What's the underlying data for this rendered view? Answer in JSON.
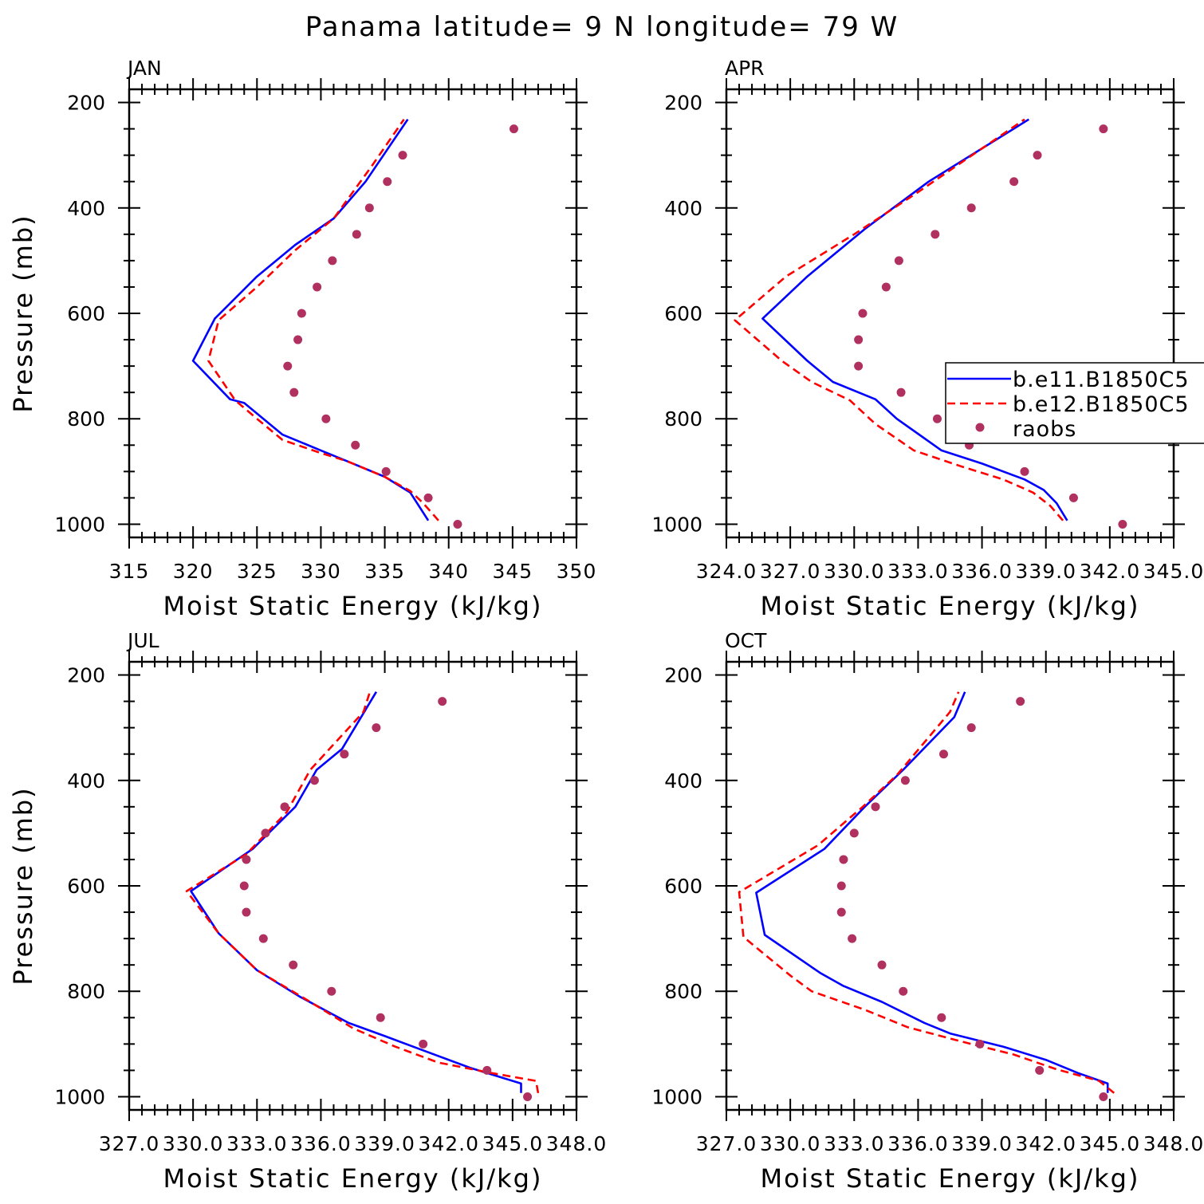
{
  "suptitle": "Panama  latitude= 9 N longitude= 79 W",
  "colors": {
    "series_1": "#0000ff",
    "series_2": "#ff0000",
    "raobs": "#b03060"
  },
  "chart_data": [
    {
      "type": "line",
      "title": "JAN",
      "xlabel": "Moist Static Energy (kJ/kg)",
      "ylabel": "Pressure (mb)",
      "xlim": [
        315,
        350
      ],
      "ylim": [
        1000,
        200
      ],
      "xticks": [
        "315",
        "320",
        "325",
        "330",
        "335",
        "340",
        "345",
        "350"
      ],
      "yticks": [
        "200",
        "400",
        "600",
        "800",
        "1000"
      ],
      "series": [
        {
          "name": "b.e11.B1850C5",
          "style": "solid",
          "points": [
            [
              338.4,
              993
            ],
            [
              337,
              940
            ],
            [
              335,
              910
            ],
            [
              332,
              880
            ],
            [
              330,
              860
            ],
            [
              327,
              830
            ],
            [
              324,
              770
            ],
            [
              322.9,
              763
            ],
            [
              320,
              690
            ],
            [
              321.7,
              610
            ],
            [
              325,
              530
            ],
            [
              328,
              470
            ],
            [
              331,
              420
            ],
            [
              333.5,
              350
            ],
            [
              336.8,
              232
            ]
          ]
        },
        {
          "name": "b.e12.B1850C5",
          "style": "dashed",
          "points": [
            [
              339.2,
              993
            ],
            [
              338,
              960
            ],
            [
              337,
              937
            ],
            [
              335,
              910
            ],
            [
              332,
              880
            ],
            [
              330,
              865
            ],
            [
              327,
              840
            ],
            [
              325,
              800
            ],
            [
              323.3,
              765
            ],
            [
              321.2,
              690
            ],
            [
              322,
              613
            ],
            [
              325,
              550
            ],
            [
              328,
              480
            ],
            [
              331,
              420
            ],
            [
              334,
              320
            ],
            [
              336.5,
              232
            ]
          ]
        },
        {
          "name": "raobs",
          "style": "points",
          "points": [
            [
              345.1,
              250
            ],
            [
              336.4,
              300
            ],
            [
              335.2,
              350
            ],
            [
              333.8,
              400
            ],
            [
              332.8,
              450
            ],
            [
              330.9,
              500
            ],
            [
              329.7,
              550
            ],
            [
              328.5,
              600
            ],
            [
              328.2,
              650
            ],
            [
              327.4,
              700
            ],
            [
              327.9,
              750
            ],
            [
              330.4,
              800
            ],
            [
              332.7,
              850
            ],
            [
              335.1,
              900
            ],
            [
              338.4,
              950
            ],
            [
              340.7,
              1000
            ]
          ]
        }
      ]
    },
    {
      "type": "line",
      "title": "APR",
      "xlabel": "Moist Static Energy (kJ/kg)",
      "ylabel": "",
      "xlim": [
        324.0,
        345.0
      ],
      "ylim": [
        1000,
        200
      ],
      "xticks": [
        "324.0",
        "327.0",
        "330.0",
        "333.0",
        "336.0",
        "339.0",
        "342.0",
        "345.0"
      ],
      "yticks": [
        "200",
        "400",
        "600",
        "800",
        "1000"
      ],
      "series": [
        {
          "name": "b.e11.B1850C5",
          "style": "solid",
          "points": [
            [
              340.0,
              993
            ],
            [
              339.5,
              960
            ],
            [
              338.9,
              935
            ],
            [
              338,
              915
            ],
            [
              336,
              885
            ],
            [
              334.1,
              860
            ],
            [
              332,
              800
            ],
            [
              331,
              763
            ],
            [
              329,
              730
            ],
            [
              327.8,
              690
            ],
            [
              325.7,
              610
            ],
            [
              327.8,
              530
            ],
            [
              330.5,
              440
            ],
            [
              333.5,
              350
            ],
            [
              338.2,
              232
            ]
          ]
        },
        {
          "name": "b.e12.B1850C5",
          "style": "dashed",
          "points": [
            [
              339.8,
              993
            ],
            [
              339.2,
              965
            ],
            [
              338.4,
              940
            ],
            [
              337,
              915
            ],
            [
              335,
              890
            ],
            [
              332.8,
              860
            ],
            [
              331,
              810
            ],
            [
              329.8,
              765
            ],
            [
              328,
              730
            ],
            [
              326.6,
              690
            ],
            [
              324.4,
              613
            ],
            [
              326.8,
              530
            ],
            [
              330,
              450
            ],
            [
              333,
              370
            ],
            [
              338,
              232
            ]
          ]
        },
        {
          "name": "raobs",
          "style": "points",
          "points": [
            [
              341.7,
              250
            ],
            [
              338.6,
              300
            ],
            [
              337.5,
              350
            ],
            [
              335.5,
              400
            ],
            [
              333.8,
              450
            ],
            [
              332.1,
              500
            ],
            [
              331.5,
              550
            ],
            [
              330.4,
              600
            ],
            [
              330.2,
              650
            ],
            [
              330.2,
              700
            ],
            [
              332.2,
              750
            ],
            [
              333.9,
              800
            ],
            [
              335.4,
              850
            ],
            [
              338,
              900
            ],
            [
              340.3,
              950
            ],
            [
              342.6,
              1000
            ]
          ]
        }
      ],
      "legend": {
        "placement": "right",
        "entries": [
          "b.e11.B1850C5",
          "b.e12.B1850C5",
          "raobs"
        ]
      }
    },
    {
      "type": "line",
      "title": "JUL",
      "xlabel": "Moist Static Energy (kJ/kg)",
      "ylabel": "Pressure (mb)",
      "xlim": [
        327.0,
        348.0
      ],
      "ylim": [
        1000,
        200
      ],
      "xticks": [
        "327.0",
        "330.0",
        "333.0",
        "336.0",
        "339.0",
        "342.0",
        "345.0",
        "348.0"
      ],
      "yticks": [
        "200",
        "400",
        "600",
        "800",
        "1000"
      ],
      "series": [
        {
          "name": "b.e11.B1850C5",
          "style": "solid",
          "points": [
            [
              345.4,
              993
            ],
            [
              345.4,
              975
            ],
            [
              343,
              945
            ],
            [
              341,
              915
            ],
            [
              339,
              885
            ],
            [
              337.3,
              860
            ],
            [
              335,
              810
            ],
            [
              333,
              760
            ],
            [
              331.2,
              690
            ],
            [
              329.9,
              610
            ],
            [
              332.8,
              530
            ],
            [
              334.8,
              450
            ],
            [
              335.8,
              380
            ],
            [
              337,
              340
            ],
            [
              338.6,
              232
            ]
          ]
        },
        {
          "name": "b.e12.B1850C5",
          "style": "dashed",
          "points": [
            [
              346.2,
              993
            ],
            [
              346.1,
              970
            ],
            [
              344,
              955
            ],
            [
              341.5,
              935
            ],
            [
              339.5,
              905
            ],
            [
              337.5,
              870
            ],
            [
              335.5,
              820
            ],
            [
              333,
              760
            ],
            [
              331.2,
              690
            ],
            [
              329.7,
              610
            ],
            [
              332.5,
              540
            ],
            [
              334.4,
              460
            ],
            [
              335.5,
              380
            ],
            [
              338,
              270
            ],
            [
              338.3,
              232
            ]
          ]
        },
        {
          "name": "raobs",
          "style": "points",
          "points": [
            [
              341.7,
              250
            ],
            [
              338.6,
              300
            ],
            [
              337.1,
              350
            ],
            [
              335.7,
              400
            ],
            [
              334.3,
              450
            ],
            [
              333.4,
              500
            ],
            [
              332.5,
              550
            ],
            [
              332.4,
              600
            ],
            [
              332.5,
              650
            ],
            [
              333.3,
              700
            ],
            [
              334.7,
              750
            ],
            [
              336.5,
              800
            ],
            [
              338.8,
              850
            ],
            [
              340.8,
              900
            ],
            [
              343.8,
              950
            ],
            [
              345.7,
              1000
            ]
          ]
        }
      ]
    },
    {
      "type": "line",
      "title": "OCT",
      "xlabel": "Moist Static Energy (kJ/kg)",
      "ylabel": "",
      "xlim": [
        327.0,
        348.0
      ],
      "ylim": [
        1000,
        200
      ],
      "xticks": [
        "327.0",
        "330.0",
        "333.0",
        "336.0",
        "339.0",
        "342.0",
        "345.0",
        "348.0"
      ],
      "yticks": [
        "200",
        "400",
        "600",
        "800",
        "1000"
      ],
      "series": [
        {
          "name": "b.e11.B1850C5",
          "style": "solid",
          "points": [
            [
              344.9,
              993
            ],
            [
              344.9,
              975
            ],
            [
              343.5,
              955
            ],
            [
              342,
              930
            ],
            [
              340,
              905
            ],
            [
              337.5,
              880
            ],
            [
              336.3,
              860
            ],
            [
              334.3,
              820
            ],
            [
              332.5,
              790
            ],
            [
              331.4,
              765
            ],
            [
              328.8,
              693
            ],
            [
              328.4,
              613
            ],
            [
              331.6,
              530
            ],
            [
              333.5,
              450
            ],
            [
              335.3,
              380
            ],
            [
              337.7,
              280
            ],
            [
              338.2,
              232
            ]
          ]
        },
        {
          "name": "b.e12.B1850C5",
          "style": "dashed",
          "points": [
            [
              345.2,
              993
            ],
            [
              344.5,
              970
            ],
            [
              342.5,
              948
            ],
            [
              340.5,
              920
            ],
            [
              338,
              895
            ],
            [
              335.5,
              868
            ],
            [
              333.5,
              835
            ],
            [
              331,
              800
            ],
            [
              330,
              770
            ],
            [
              327.8,
              697
            ],
            [
              327.6,
              612
            ],
            [
              331.3,
              523
            ],
            [
              333.4,
              450
            ],
            [
              335,
              390
            ],
            [
              337.5,
              270
            ],
            [
              337.9,
              232
            ]
          ]
        },
        {
          "name": "raobs",
          "style": "points",
          "points": [
            [
              340.8,
              250
            ],
            [
              338.5,
              300
            ],
            [
              337.2,
              350
            ],
            [
              335.4,
              400
            ],
            [
              334.0,
              450
            ],
            [
              333.0,
              500
            ],
            [
              332.5,
              550
            ],
            [
              332.4,
              600
            ],
            [
              332.4,
              650
            ],
            [
              332.9,
              700
            ],
            [
              334.3,
              750
            ],
            [
              335.3,
              800
            ],
            [
              337.1,
              850
            ],
            [
              338.9,
              900
            ],
            [
              341.7,
              950
            ],
            [
              344.7,
              1000
            ]
          ]
        }
      ]
    }
  ]
}
